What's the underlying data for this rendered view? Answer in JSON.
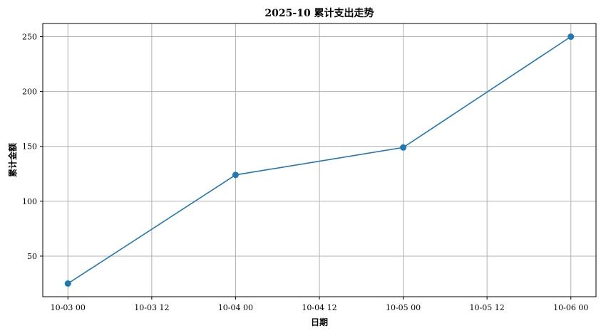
{
  "chart_data": {
    "type": "line",
    "title": "2025-10 累计支出走势",
    "xlabel": "日期",
    "ylabel": "累计金额",
    "x_ticks": [
      {
        "value": 0,
        "label": "10-03 00"
      },
      {
        "value": 0.5,
        "label": "10-03 12"
      },
      {
        "value": 1,
        "label": "10-04 00"
      },
      {
        "value": 1.5,
        "label": "10-04 12"
      },
      {
        "value": 2,
        "label": "10-05 00"
      },
      {
        "value": 2.5,
        "label": "10-05 12"
      },
      {
        "value": 3,
        "label": "10-06 00"
      }
    ],
    "y_ticks": [
      50,
      100,
      150,
      200,
      250
    ],
    "xlim": [
      -0.15,
      3.15
    ],
    "ylim": [
      13,
      262
    ],
    "grid": true,
    "series": [
      {
        "color": "#1f77b4",
        "marker": "circle",
        "points": [
          {
            "x": "2025-10-03",
            "y": 25
          },
          {
            "x": "2025-10-04",
            "y": 124
          },
          {
            "x": "2025-10-05",
            "y": 149
          },
          {
            "x": "2025-10-06",
            "y": 250
          }
        ]
      }
    ]
  }
}
